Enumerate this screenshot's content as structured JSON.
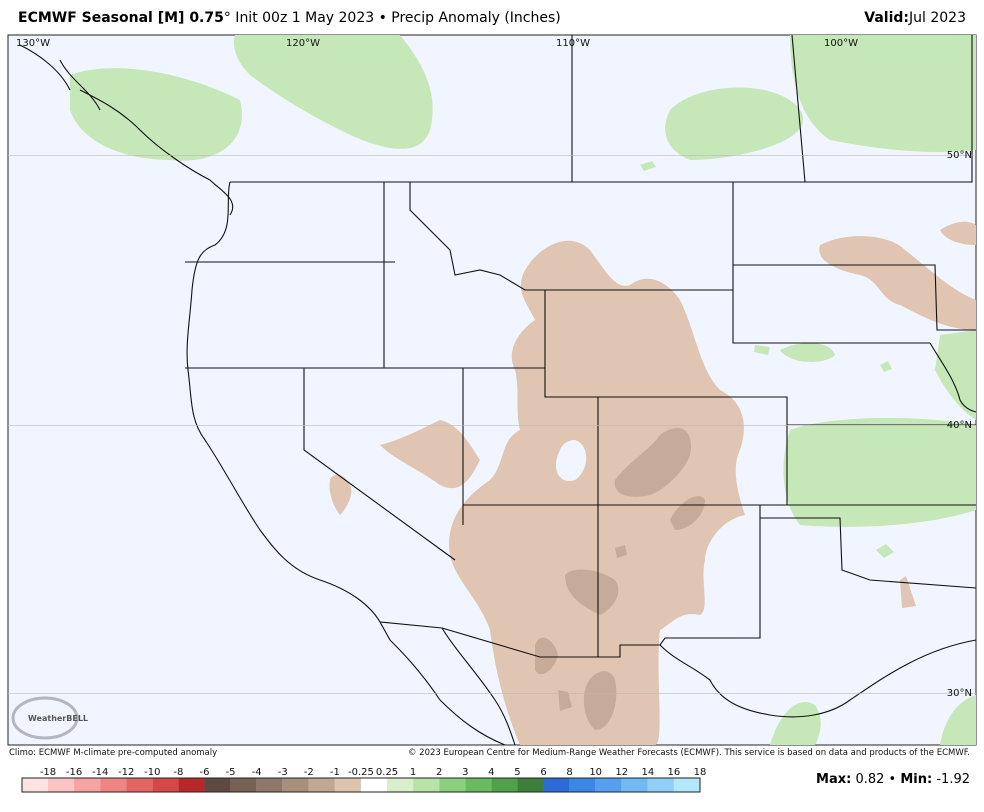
{
  "header": {
    "title_bold": "ECMWF Seasonal [M] 0.75",
    "title_rest": "° Init 00z 1 May 2023 • Precip Anomaly (Inches)",
    "valid_label": "Valid:",
    "valid_value": "Jul 2023"
  },
  "map": {
    "lon_labels": [
      "130°W",
      "120°W",
      "110°W",
      "100°W"
    ],
    "lat_labels": [
      "50°N",
      "40°N",
      "30°N"
    ],
    "logo": "WeatherBELL"
  },
  "footer": {
    "left": "Climo: ECMWF M-climate pre-computed anomaly",
    "right": "© 2023 European Centre for Medium-Range Weather Forecasts (ECMWF). This service is based on data and products of the ECMWF."
  },
  "colorbar": {
    "labels": [
      -18,
      -16,
      -14,
      -12,
      -10,
      -8,
      -6,
      -5,
      -4,
      -3,
      -2,
      -1,
      -0.25,
      0.25,
      1,
      2,
      3,
      4,
      5,
      6,
      8,
      10,
      12,
      14,
      16,
      18
    ],
    "colors": [
      "#fde4e4",
      "#fac4c4",
      "#f5a3a3",
      "#ee8484",
      "#e46464",
      "#d64848",
      "#b82828",
      "#5e4a42",
      "#776155",
      "#8f786a",
      "#a8907f",
      "#c1a895",
      "#dcc4b1",
      "#ffffff",
      "#d9efcc",
      "#b8e2a8",
      "#8ccf7c",
      "#68bb5e",
      "#4fa049",
      "#3e7e3d",
      "#2a6bd6",
      "#3c86e6",
      "#55a0ee",
      "#71b9f3",
      "#90d0f7",
      "#b3e8fa"
    ],
    "max_label": "Max:",
    "max": 0.82,
    "min_label": "Min:",
    "min": -1.92
  }
}
